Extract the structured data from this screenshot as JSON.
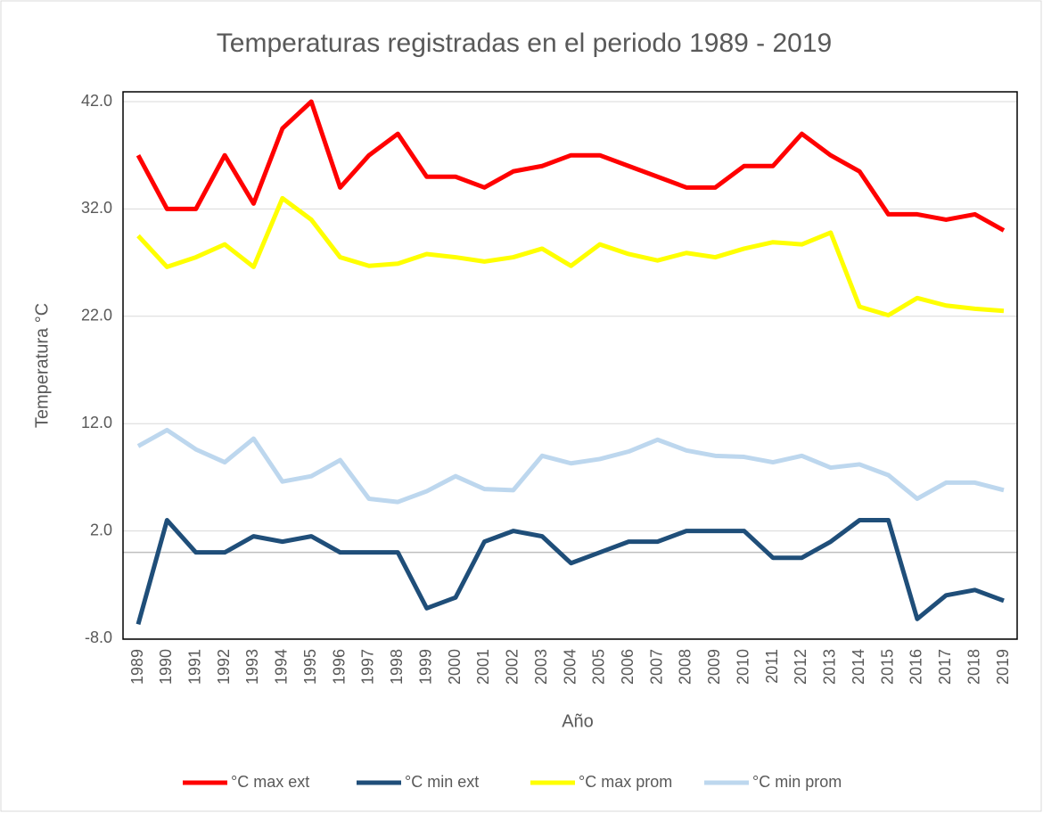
{
  "chart_data": {
    "type": "line",
    "title": "Temperaturas registradas en el periodo 1989 - 2019",
    "x_label": "Año",
    "y_label": "Temperatura °C",
    "categories": [
      "1989",
      "1990",
      "1991",
      "1992",
      "1993",
      "1994",
      "1995",
      "1996",
      "1997",
      "1998",
      "1999",
      "2000",
      "2001",
      "2002",
      "2003",
      "2004",
      "2005",
      "2006",
      "2007",
      "2008",
      "2009",
      "2010",
      "2011",
      "2012",
      "2013",
      "2014",
      "2015",
      "2016",
      "2017",
      "2018",
      "2019"
    ],
    "series": [
      {
        "name": "°C max ext",
        "color": "#ff0000",
        "values": [
          37,
          32,
          32,
          37,
          32.5,
          39.5,
          42,
          34,
          37,
          39,
          35,
          35,
          34,
          35.5,
          36,
          37,
          37,
          36,
          35,
          34,
          34,
          36,
          36,
          39,
          37,
          35.5,
          31.5,
          31.5,
          31,
          31.5,
          30
        ]
      },
      {
        "name": "°C min ext",
        "color": "#1f4e79",
        "values": [
          -6.7,
          3,
          0,
          0,
          1.5,
          1,
          1.5,
          0,
          0,
          0,
          -5.2,
          -4.2,
          1,
          2,
          1.5,
          -1,
          0,
          1,
          1,
          2,
          2,
          2,
          -0.5,
          -0.5,
          1,
          3,
          3,
          -6.2,
          -4,
          -3.5,
          -4.5
        ]
      },
      {
        "name": "°C max prom",
        "color": "#ffff00",
        "values": [
          29.5,
          26.6,
          27.5,
          28.7,
          26.6,
          33,
          31,
          27.5,
          26.7,
          26.9,
          27.8,
          27.5,
          27.1,
          27.5,
          28.3,
          26.7,
          28.7,
          27.8,
          27.2,
          27.9,
          27.5,
          28.3,
          28.9,
          28.7,
          29.8,
          22.9,
          22.1,
          23.7,
          23,
          22.7,
          22.5
        ]
      },
      {
        "name": "°C min prom",
        "color": "#bdd7ee",
        "values": [
          9.9,
          11.4,
          9.6,
          8.4,
          10.6,
          6.6,
          7.1,
          8.6,
          5,
          4.7,
          5.7,
          7.1,
          5.9,
          5.8,
          9,
          8.3,
          8.7,
          9.4,
          10.5,
          9.5,
          9,
          8.9,
          8.4,
          9,
          7.9,
          8.2,
          7.2,
          5,
          6.5,
          6.5,
          5.8
        ]
      }
    ],
    "ylim": [
      -8,
      42
    ],
    "yticks": [
      {
        "value": -8,
        "label": "-8.0"
      },
      {
        "value": 2,
        "label": "2.0"
      },
      {
        "value": 12,
        "label": "12.0"
      },
      {
        "value": 22,
        "label": "22.0"
      },
      {
        "value": 32,
        "label": "32.0"
      },
      {
        "value": 42,
        "label": "42.0"
      }
    ],
    "grid": true,
    "legend": "bottom"
  }
}
